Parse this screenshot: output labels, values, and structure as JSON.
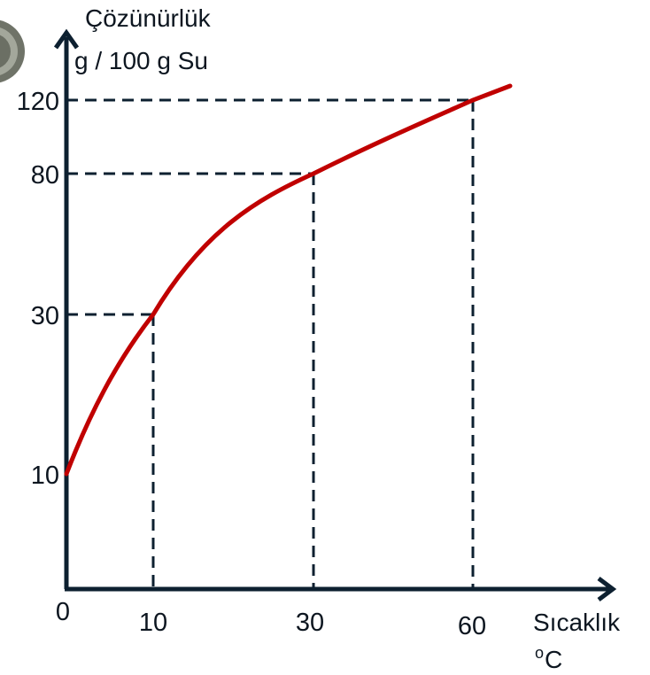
{
  "chart_data": {
    "type": "line",
    "title": "",
    "ylabel": [
      "Çözünürlük",
      "g / 100 g Su"
    ],
    "xlabel": [
      "Sıcaklık",
      "C"
    ],
    "xlabel_superscript": "o",
    "x_ticks": [
      "0",
      "10",
      "30",
      "60"
    ],
    "y_ticks": [
      "10",
      "30",
      "80",
      "120"
    ],
    "points": [
      {
        "x": 0,
        "y": 10
      },
      {
        "x": 10,
        "y": 30
      },
      {
        "x": 30,
        "y": 80
      },
      {
        "x": 60,
        "y": 120
      }
    ],
    "guide_points": [
      {
        "x": 10,
        "y": 30
      },
      {
        "x": 30,
        "y": 80
      },
      {
        "x": 60,
        "y": 120
      }
    ],
    "line_color": "#c00000",
    "axis_color": "#0d2030"
  }
}
